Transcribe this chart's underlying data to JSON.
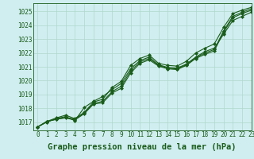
{
  "title": "Graphe pression niveau de la mer (hPa)",
  "bg_color": "#d0eef0",
  "line_color": "#1a5c1a",
  "grid_color": "#b0d8cc",
  "xlim": [
    -0.5,
    23
  ],
  "ylim": [
    1016.4,
    1025.6
  ],
  "yticks": [
    1017,
    1018,
    1019,
    1020,
    1021,
    1022,
    1023,
    1024,
    1025
  ],
  "xticks": [
    0,
    1,
    2,
    3,
    4,
    5,
    6,
    7,
    8,
    9,
    10,
    11,
    12,
    13,
    14,
    15,
    16,
    17,
    18,
    19,
    20,
    21,
    22,
    23
  ],
  "series": [
    [
      1016.65,
      1017.05,
      1017.2,
      1017.3,
      1017.15,
      1017.6,
      1018.3,
      1018.4,
      1019.1,
      1019.45,
      1020.55,
      1021.25,
      1021.5,
      1021.05,
      1020.85,
      1020.8,
      1021.1,
      1021.6,
      1021.9,
      1022.15,
      1023.5,
      1024.55,
      1024.85,
      1025.1
    ],
    [
      1016.65,
      1017.05,
      1017.2,
      1017.35,
      1017.2,
      1017.65,
      1018.35,
      1018.5,
      1019.2,
      1019.6,
      1020.7,
      1021.35,
      1021.6,
      1021.1,
      1020.9,
      1020.85,
      1021.15,
      1021.65,
      1022.0,
      1022.25,
      1023.6,
      1024.65,
      1024.95,
      1025.2
    ],
    [
      1016.65,
      1017.0,
      1017.25,
      1017.4,
      1017.1,
      1018.05,
      1018.5,
      1018.85,
      1019.35,
      1019.8,
      1020.85,
      1021.45,
      1021.7,
      1021.15,
      1020.95,
      1020.9,
      1021.2,
      1021.7,
      1022.1,
      1022.35,
      1023.35,
      1024.35,
      1024.65,
      1024.95
    ],
    [
      1016.65,
      1017.05,
      1017.3,
      1017.5,
      1017.25,
      1017.7,
      1018.45,
      1018.65,
      1019.5,
      1019.95,
      1021.1,
      1021.6,
      1021.85,
      1021.25,
      1021.1,
      1021.05,
      1021.4,
      1022.0,
      1022.35,
      1022.65,
      1023.85,
      1024.85,
      1025.1,
      1025.3
    ]
  ],
  "marker": "D",
  "markersize": 2.0,
  "linewidth": 0.8,
  "title_fontsize": 7.5,
  "tick_fontsize": 5.5
}
